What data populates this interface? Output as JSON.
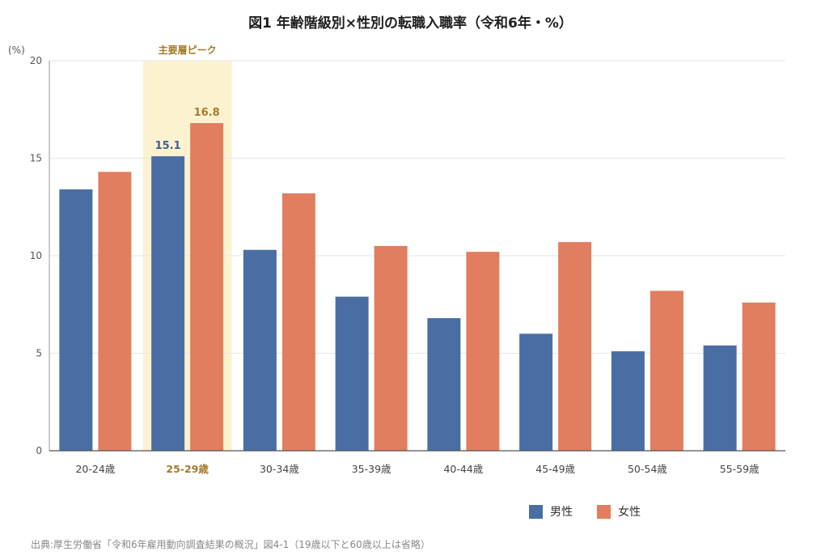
{
  "chart_data": {
    "type": "bar",
    "title": "図1 年齢階級別×性別の転職入職率（令和6年・%）",
    "ylabel": "(%)",
    "ylim": [
      0,
      20
    ],
    "yticks": [
      0,
      5,
      10,
      15,
      20
    ],
    "grid": true,
    "categories": [
      "20-24歳",
      "25-29歳",
      "30-34歳",
      "35-39歳",
      "40-44歳",
      "45-49歳",
      "50-54歳",
      "55-59歳"
    ],
    "series": [
      {
        "name": "男性",
        "color": "#4a6ea3",
        "values": [
          13.4,
          15.1,
          10.3,
          7.9,
          6.8,
          6.0,
          5.1,
          5.4
        ]
      },
      {
        "name": "女性",
        "color": "#e07e5f",
        "values": [
          14.3,
          16.8,
          13.2,
          10.5,
          10.2,
          10.7,
          8.2,
          7.6
        ]
      }
    ],
    "highlight": {
      "category_index": 1,
      "label": "主要層ピーク",
      "band_color": "#fdf2d0",
      "text_color": "#a57a2a",
      "data_labels": [
        {
          "series_index": 0,
          "text": "15.1",
          "color": "#3d5f91"
        },
        {
          "series_index": 1,
          "text": "16.8",
          "color": "#a57a2a"
        }
      ]
    },
    "legend_position": "bottom-right"
  },
  "source_note": "出典:厚生労働省「令和6年雇用動向調査結果の概況」図4-1（19歳以下と60歳以上は省略）"
}
